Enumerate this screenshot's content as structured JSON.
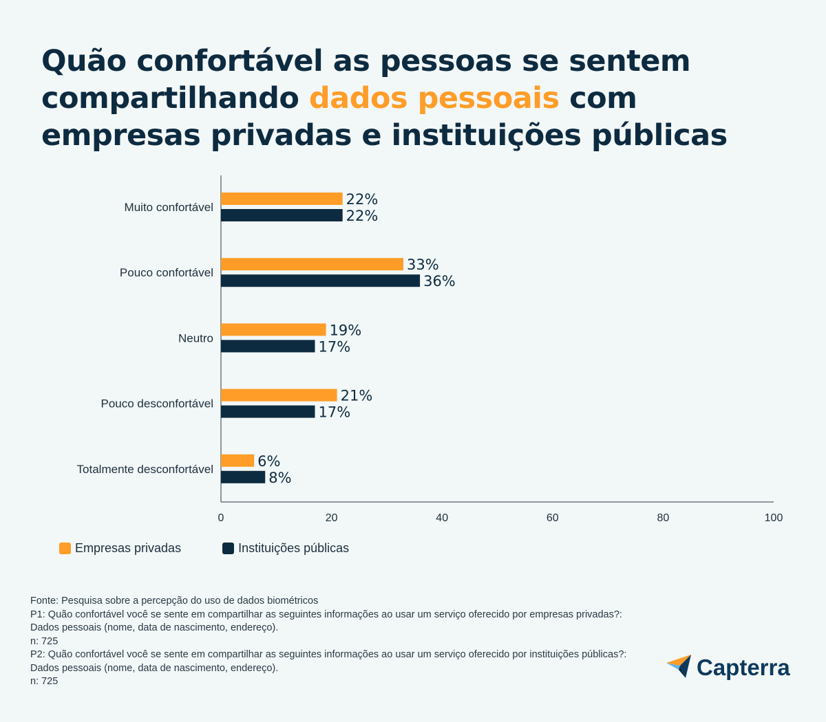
{
  "title": {
    "part1": "Quão confortável as pessoas se sentem compartilhando ",
    "highlight": "dados pessoais",
    "part2": " com empresas privadas e instituições públicas"
  },
  "colors": {
    "primary": "#0d2b40",
    "accent": "#ff9d28",
    "background": "#f2f7f7"
  },
  "chart_data": {
    "type": "bar",
    "orientation": "horizontal",
    "categories": [
      "Muito confortável",
      "Pouco confortável",
      "Neutro",
      "Pouco desconfortável",
      "Totalmente desconfortável"
    ],
    "series": [
      {
        "name": "Empresas privadas",
        "color": "#ff9d28",
        "values": [
          22,
          33,
          19,
          21,
          6
        ]
      },
      {
        "name": "Instituições públicas",
        "color": "#0d2b40",
        "values": [
          22,
          36,
          17,
          17,
          8
        ]
      }
    ],
    "data_labels": [
      [
        "22%",
        "33%",
        "19%",
        "21%",
        "6%"
      ],
      [
        "22%",
        "36%",
        "17%",
        "17%",
        "8%"
      ]
    ],
    "xlim": [
      0,
      100
    ],
    "xticks": [
      0,
      20,
      40,
      60,
      80,
      100
    ],
    "grid": false,
    "legend_position": "bottom-left"
  },
  "legend": {
    "private_label": "Empresas privadas",
    "public_label": "Instituições públicas"
  },
  "footnote": {
    "source": "Fonte: Pesquisa sobre a percepção do uso de dados biométricos",
    "p1": "P1: Quão confortável você se sente em compartilhar as seguintes informações ao usar um serviço oferecido por empresas privadas?: Dados pessoais (nome, data de nascimento, endereço).",
    "n1": "n: 725",
    "p2": "P2: Quão confortável você se sente em compartilhar as seguintes informações ao usar um serviço oferecido por instituições públicas?: Dados pessoais (nome, data de nascimento, endereço).",
    "n2": "n: 725"
  },
  "logo": {
    "text": "Capterra",
    "icon": "capterra-arrow-icon"
  }
}
